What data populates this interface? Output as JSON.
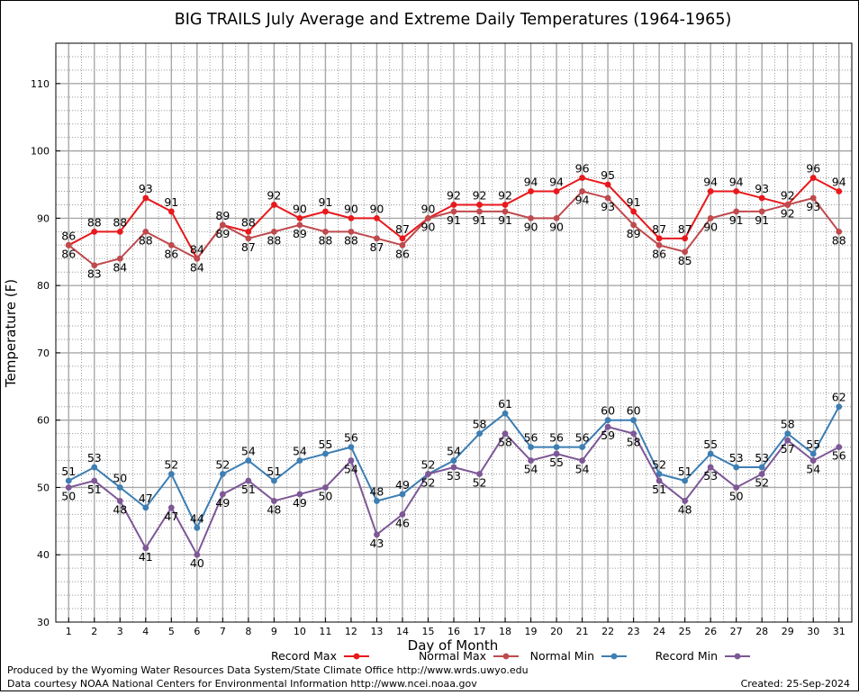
{
  "chart_data": {
    "type": "line",
    "title": "BIG TRAILS July Average and Extreme Daily Temperatures (1964-1965)",
    "xlabel": "Day of Month",
    "ylabel": "Temperature (F)",
    "x": [
      1,
      2,
      3,
      4,
      5,
      6,
      7,
      8,
      9,
      10,
      11,
      12,
      13,
      14,
      15,
      16,
      17,
      18,
      19,
      20,
      21,
      22,
      23,
      24,
      25,
      26,
      27,
      28,
      29,
      30,
      31
    ],
    "xlim": [
      0.5,
      31.5
    ],
    "ylim": [
      30,
      116
    ],
    "yticks": [
      30,
      40,
      50,
      60,
      70,
      80,
      90,
      100,
      110
    ],
    "grid": true,
    "legend_position": "bottom",
    "series": [
      {
        "name": "Record Max",
        "color": "#e8191c",
        "values": [
          86,
          88,
          88,
          93,
          91,
          84,
          89,
          88,
          92,
          90,
          91,
          90,
          90,
          87,
          90,
          92,
          92,
          92,
          94,
          94,
          96,
          95,
          91,
          87,
          87,
          94,
          94,
          93,
          92,
          96,
          94
        ]
      },
      {
        "name": "Normal Max",
        "color": "#bf4a4e",
        "values": [
          86,
          83,
          84,
          88,
          86,
          84,
          89,
          87,
          88,
          89,
          88,
          88,
          87,
          86,
          90,
          91,
          91,
          91,
          90,
          90,
          94,
          93,
          89,
          86,
          85,
          90,
          91,
          91,
          92,
          93,
          88
        ]
      },
      {
        "name": "Normal Min",
        "color": "#3d7eb3",
        "values": [
          51,
          53,
          50,
          47,
          52,
          44,
          52,
          54,
          51,
          54,
          55,
          56,
          48,
          49,
          52,
          54,
          58,
          61,
          56,
          56,
          56,
          60,
          60,
          52,
          51,
          55,
          53,
          53,
          58,
          55,
          62
        ]
      },
      {
        "name": "Record Min",
        "color": "#7d5796",
        "values": [
          50,
          51,
          48,
          41,
          47,
          40,
          49,
          51,
          48,
          49,
          50,
          54,
          43,
          46,
          52,
          53,
          52,
          58,
          54,
          55,
          54,
          59,
          58,
          51,
          48,
          53,
          50,
          52,
          57,
          54,
          56
        ]
      }
    ]
  },
  "footer": {
    "produced_by": "Produced by the Wyoming Water Resources Data System/State Climate Office http://www.wrds.uwyo.edu",
    "data_courtesy": "Data courtesy NOAA National Centers for Environmental Information http://www.ncei.noaa.gov",
    "created": "Created:  25-Sep-2024"
  }
}
